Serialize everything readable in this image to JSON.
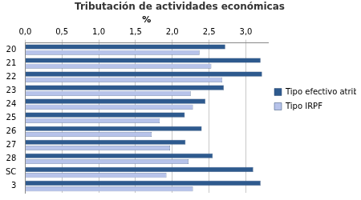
{
  "chart_data": {
    "type": "bar",
    "title": "Tributación de actividades económicas",
    "xlabel": "%",
    "orientation": "horizontal",
    "legend": "right",
    "grid": true,
    "categories": [
      "20",
      "21",
      "22",
      "23",
      "24",
      "25",
      "26",
      "27",
      "28",
      "SC",
      "3"
    ],
    "series": [
      {
        "name": "Tipo efectivo atribuible",
        "color": "#2e5a8e",
        "values": [
          2.72,
          3.2,
          3.22,
          2.7,
          2.45,
          2.17,
          2.4,
          2.18,
          2.55,
          3.1,
          3.2
        ]
      },
      {
        "name": "Tipo IRPF",
        "color": "#b7c3ea",
        "values": [
          2.37,
          2.53,
          2.68,
          2.25,
          2.28,
          1.83,
          1.72,
          1.97,
          2.22,
          1.92,
          2.28
        ]
      }
    ],
    "xlim": [
      0,
      3.3
    ],
    "xticks": [
      {
        "value": 0,
        "label": "0,0"
      },
      {
        "value": 0.5,
        "label": "0,5"
      },
      {
        "value": 1,
        "label": "1,0"
      },
      {
        "value": 1.5,
        "label": "1,5"
      },
      {
        "value": 2,
        "label": "2,0"
      },
      {
        "value": 2.5,
        "label": "2,5"
      },
      {
        "value": 3,
        "label": "3,0"
      }
    ]
  }
}
